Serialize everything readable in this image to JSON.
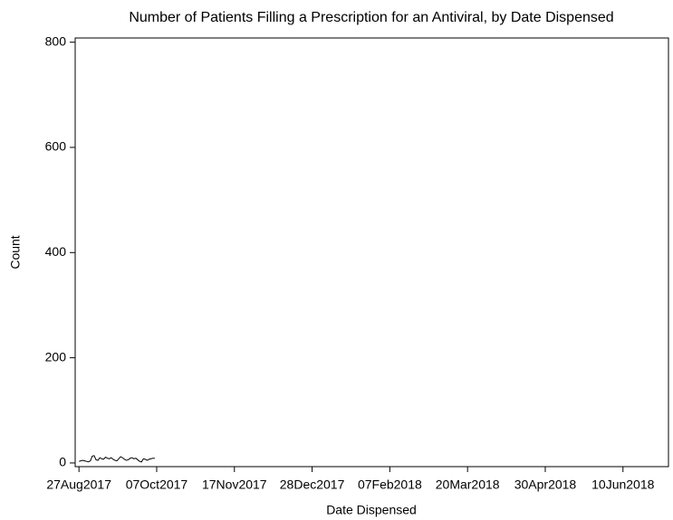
{
  "chart_data": {
    "type": "line",
    "title": "Number of Patients Filling a Prescription for an Antiviral, by Date Dispensed",
    "x_label": "Date Dispensed",
    "y_label": "Count",
    "x": [
      "2017-08-27",
      "2017-08-28",
      "2017-08-29",
      "2017-08-30",
      "2017-08-31",
      "2017-09-01",
      "2017-09-02",
      "2017-09-03",
      "2017-09-04",
      "2017-09-05",
      "2017-09-06",
      "2017-09-07",
      "2017-09-08",
      "2017-09-09",
      "2017-09-10",
      "2017-09-11",
      "2017-09-12",
      "2017-09-13",
      "2017-09-14",
      "2017-09-15",
      "2017-09-16",
      "2017-09-17",
      "2017-09-18",
      "2017-09-19",
      "2017-09-20",
      "2017-09-21",
      "2017-09-22",
      "2017-09-23",
      "2017-09-24",
      "2017-09-25",
      "2017-09-26",
      "2017-09-27",
      "2017-09-28",
      "2017-09-29",
      "2017-09-30",
      "2017-10-01",
      "2017-10-02",
      "2017-10-03",
      "2017-10-04",
      "2017-10-05",
      "2017-10-06"
    ],
    "series": [
      {
        "name": "Count",
        "color": "#000000",
        "values": [
          3,
          4,
          5,
          4,
          3,
          2,
          4,
          13,
          14,
          6,
          5,
          10,
          8,
          7,
          11,
          9,
          8,
          10,
          7,
          5,
          4,
          8,
          12,
          10,
          7,
          5,
          6,
          9,
          10,
          8,
          9,
          6,
          3,
          2,
          8,
          7,
          5,
          7,
          8,
          9,
          9
        ]
      }
    ],
    "xlim": [
      "2017-08-25",
      "2018-07-04"
    ],
    "xticks": [
      {
        "value": "2017-08-27",
        "label": "27Aug2017"
      },
      {
        "value": "2017-10-07",
        "label": "07Oct2017"
      },
      {
        "value": "2017-11-17",
        "label": "17Nov2017"
      },
      {
        "value": "2017-12-28",
        "label": "28Dec2017"
      },
      {
        "value": "2018-02-07",
        "label": "07Feb2018"
      },
      {
        "value": "2018-03-20",
        "label": "20Mar2018"
      },
      {
        "value": "2018-04-30",
        "label": "30Apr2018"
      },
      {
        "value": "2018-06-10",
        "label": "10Jun2018"
      }
    ],
    "ylim": [
      -7,
      808
    ],
    "yticks": [
      0,
      200,
      400,
      600,
      800
    ],
    "grid": false
  }
}
